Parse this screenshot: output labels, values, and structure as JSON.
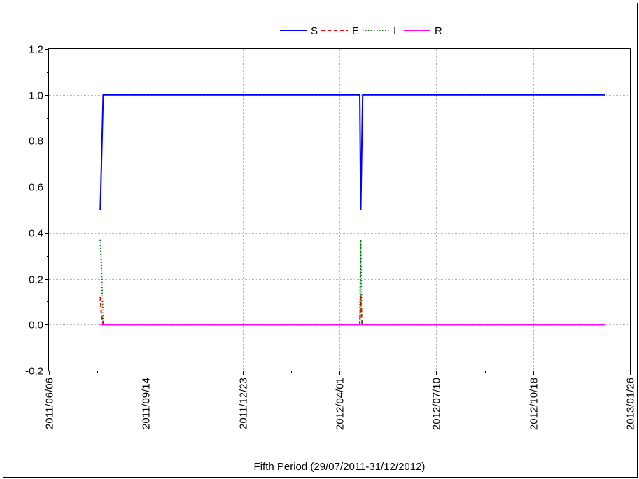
{
  "chart_data": {
    "type": "line",
    "title": "",
    "xlabel": "Fifth Period (29/07/2011-31/12/2012)",
    "ylabel": "",
    "x_axis_type": "date",
    "xlim": [
      "2011-06-06",
      "2013-01-26"
    ],
    "ylim": [
      -0.2,
      1.2
    ],
    "grid": true,
    "legend": "top-center",
    "x_ticks": [
      "2011/06/06",
      "2011/09/14",
      "2011/12/23",
      "2012/04/01",
      "2012/07/10",
      "2012/10/18",
      "2013/01/26"
    ],
    "y_ticks": [
      "-0,2",
      "0,0",
      "0,2",
      "0,4",
      "0,6",
      "0,8",
      "1,0",
      "1,2"
    ],
    "series": [
      {
        "name": "S",
        "color": "#0000ff",
        "dash": "solid",
        "points": [
          [
            "2011-07-29",
            0.5
          ],
          [
            "2011-08-01",
            1.0
          ],
          [
            "2012-04-22",
            1.0
          ],
          [
            "2012-04-23",
            0.5
          ],
          [
            "2012-04-25",
            1.0
          ],
          [
            "2012-12-31",
            1.0
          ]
        ]
      },
      {
        "name": "E",
        "color": "#ff0000",
        "dash": "dash",
        "points": [
          [
            "2011-07-29",
            0.12
          ],
          [
            "2011-07-30",
            0.05
          ],
          [
            "2011-08-01",
            0.0
          ],
          [
            "2012-04-22",
            0.0
          ],
          [
            "2012-04-23",
            0.13
          ],
          [
            "2012-04-24",
            0.02
          ],
          [
            "2012-04-25",
            0.0
          ],
          [
            "2012-12-31",
            0.0
          ]
        ]
      },
      {
        "name": "I",
        "color": "#008000",
        "dash": "dot",
        "points": [
          [
            "2011-07-29",
            0.37
          ],
          [
            "2011-07-30",
            0.28
          ],
          [
            "2011-08-01",
            0.0
          ],
          [
            "2012-04-22",
            0.0
          ],
          [
            "2012-04-23",
            0.37
          ],
          [
            "2012-04-24",
            0.01
          ],
          [
            "2012-04-25",
            0.0
          ],
          [
            "2012-12-31",
            0.0
          ]
        ]
      },
      {
        "name": "R",
        "color": "#ff00ff",
        "dash": "solid",
        "points": [
          [
            "2011-07-29",
            0.0
          ],
          [
            "2012-12-31",
            0.0
          ]
        ]
      }
    ]
  }
}
